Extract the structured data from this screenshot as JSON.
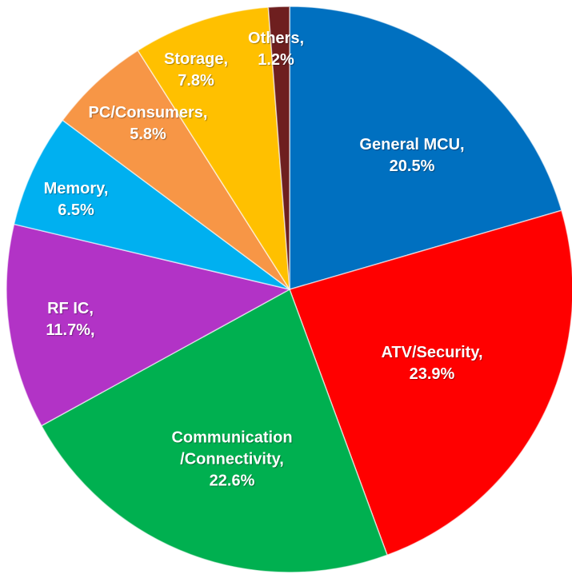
{
  "chart_data": {
    "type": "pie",
    "categories": [
      "General MCU,",
      "ATV/Security,",
      "Communication\n/Connectivity,",
      "RF IC,",
      "Memory,",
      "PC/Consumers,",
      "Storage,",
      "Others,"
    ],
    "values": [
      20.5,
      23.9,
      22.6,
      11.7,
      6.5,
      5.8,
      7.8,
      1.2
    ],
    "value_labels": [
      "20.5%",
      "23.9%",
      "22.6%",
      "11.7%,",
      "6.5%",
      "5.8%",
      "7.8%",
      "1.2%"
    ],
    "colors": [
      "#0070c0",
      "#ff0000",
      "#00b050",
      "#b233c6",
      "#00b0f0",
      "#f79646",
      "#ffc000",
      "#6e1f1f"
    ]
  }
}
